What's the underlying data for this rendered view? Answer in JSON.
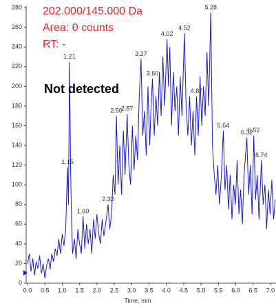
{
  "chart_data": {
    "type": "line",
    "header_lines": [
      "202.000/145.000 Da",
      "Area: 0 counts",
      "RT: -"
    ],
    "note": "Not detected",
    "xlabel": "Time, min",
    "color": "#1a1ad6",
    "xlim": [
      0,
      7.16
    ],
    "ylim": [
      0,
      285
    ],
    "yticks": [
      0,
      20,
      40,
      60,
      80,
      100,
      120,
      140,
      160,
      180,
      200,
      220,
      240,
      260,
      280
    ],
    "xticks": [
      {
        "value": 0,
        "label": "0.0"
      },
      0.5,
      {
        "value": 1,
        "label": "1.0"
      },
      1.5,
      {
        "value": 2,
        "label": "2.0"
      },
      2.5,
      {
        "value": 3,
        "label": "3.0"
      },
      3.5,
      {
        "value": 4,
        "label": "4.0"
      },
      4.5,
      {
        "value": 5,
        "label": "5.0"
      },
      5.5,
      {
        "value": 6,
        "label": "6.0"
      },
      6.5,
      {
        "value": 7,
        "label": "7.0"
      }
    ],
    "x": [
      0.0,
      0.05,
      0.1,
      0.15,
      0.2,
      0.25,
      0.3,
      0.35,
      0.4,
      0.45,
      0.5,
      0.55,
      0.6,
      0.65,
      0.7,
      0.75,
      0.8,
      0.85,
      0.9,
      0.95,
      1.0,
      1.05,
      1.1,
      1.15,
      1.18,
      1.21,
      1.24,
      1.27,
      1.3,
      1.35,
      1.4,
      1.45,
      1.5,
      1.55,
      1.6,
      1.65,
      1.7,
      1.75,
      1.8,
      1.85,
      1.9,
      1.95,
      2.0,
      2.05,
      2.1,
      2.15,
      2.2,
      2.25,
      2.32,
      2.37,
      2.42,
      2.47,
      2.52,
      2.56,
      2.61,
      2.66,
      2.71,
      2.76,
      2.81,
      2.87,
      2.92,
      2.97,
      3.02,
      3.07,
      3.12,
      3.17,
      3.22,
      3.27,
      3.32,
      3.37,
      3.42,
      3.47,
      3.52,
      3.56,
      3.6,
      3.65,
      3.7,
      3.75,
      3.8,
      3.85,
      3.9,
      3.95,
      4.02,
      4.06,
      4.1,
      4.15,
      4.2,
      4.25,
      4.3,
      4.35,
      4.4,
      4.45,
      4.52,
      4.57,
      4.62,
      4.67,
      4.72,
      4.77,
      4.82,
      4.87,
      4.92,
      4.97,
      5.02,
      5.07,
      5.12,
      5.17,
      5.22,
      5.28,
      5.33,
      5.38,
      5.43,
      5.48,
      5.53,
      5.58,
      5.64,
      5.69,
      5.74,
      5.79,
      5.84,
      5.89,
      5.94,
      5.99,
      6.04,
      6.09,
      6.14,
      6.19,
      6.24,
      6.32,
      6.37,
      6.42,
      6.47,
      6.52,
      6.57,
      6.62,
      6.67,
      6.74,
      6.79,
      6.84,
      6.89,
      6.94,
      6.99,
      7.04,
      7.09,
      7.14
    ],
    "values": [
      20,
      30,
      12,
      25,
      8,
      22,
      15,
      28,
      10,
      20,
      5,
      18,
      25,
      14,
      30,
      22,
      35,
      28,
      45,
      30,
      50,
      38,
      55,
      118,
      80,
      225,
      120,
      60,
      30,
      45,
      25,
      55,
      40,
      30,
      68,
      35,
      60,
      40,
      55,
      30,
      65,
      45,
      70,
      50,
      40,
      65,
      48,
      60,
      80,
      55,
      70,
      110,
      90,
      170,
      100,
      140,
      90,
      155,
      110,
      172,
      120,
      100,
      160,
      115,
      150,
      125,
      190,
      228,
      150,
      175,
      130,
      200,
      140,
      180,
      208,
      150,
      190,
      160,
      215,
      170,
      230,
      180,
      248,
      200,
      240,
      160,
      215,
      175,
      200,
      150,
      210,
      170,
      254,
      180,
      150,
      190,
      140,
      175,
      130,
      190,
      150,
      210,
      160,
      200,
      170,
      235,
      180,
      275,
      140,
      110,
      90,
      120,
      80,
      105,
      155,
      95,
      120,
      75,
      110,
      65,
      100,
      80,
      125,
      70,
      95,
      60,
      110,
      148,
      90,
      120,
      70,
      150,
      85,
      110,
      65,
      125,
      80,
      100,
      55,
      95,
      70,
      105,
      65,
      85
    ],
    "annotations": [
      {
        "text": "1.21",
        "x": 1.21,
        "y": 225
      },
      {
        "text": "1.15",
        "x": 1.15,
        "y": 118
      },
      {
        "text": "1.60",
        "x": 1.6,
        "y": 68
      },
      {
        "text": "2.32",
        "x": 2.32,
        "y": 80
      },
      {
        "text": "2.56",
        "x": 2.56,
        "y": 170
      },
      {
        "text": "2.87",
        "x": 2.87,
        "y": 172
      },
      {
        "text": "3.27",
        "x": 3.27,
        "y": 228
      },
      {
        "text": "3.60",
        "x": 3.6,
        "y": 208
      },
      {
        "text": "4.02",
        "x": 4.02,
        "y": 248
      },
      {
        "text": "4.52",
        "x": 4.52,
        "y": 254
      },
      {
        "text": "4.87",
        "x": 4.87,
        "y": 190
      },
      {
        "text": "5.28",
        "x": 5.28,
        "y": 275
      },
      {
        "text": "5.64",
        "x": 5.64,
        "y": 155
      },
      {
        "text": "6.32",
        "x": 6.32,
        "y": 148
      },
      {
        "text": "6.52",
        "x": 6.52,
        "y": 150
      },
      {
        "text": "6.74",
        "x": 6.74,
        "y": 125
      }
    ]
  }
}
